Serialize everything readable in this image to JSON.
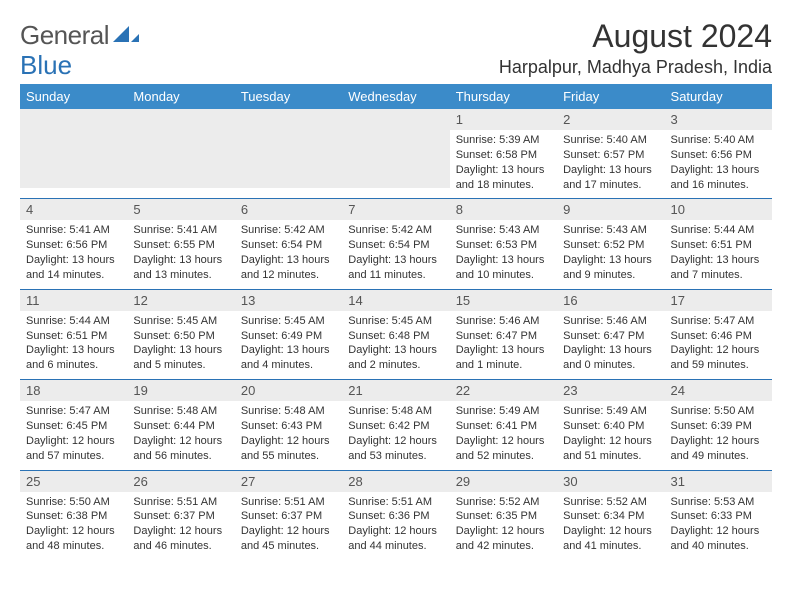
{
  "brand": {
    "line1": "General",
    "line2": "Blue"
  },
  "title": "August 2024",
  "location": "Harpalpur, Madhya Pradesh, India",
  "colors": {
    "header_bg": "#3b8bc9",
    "week_border": "#2a72b5",
    "daynum_bg": "#ececec",
    "text": "#333333",
    "brand_blue": "#2a72b5"
  },
  "day_headers": [
    "Sunday",
    "Monday",
    "Tuesday",
    "Wednesday",
    "Thursday",
    "Friday",
    "Saturday"
  ],
  "weeks": [
    [
      {
        "n": "",
        "sr": "",
        "ss": "",
        "dl": ""
      },
      {
        "n": "",
        "sr": "",
        "ss": "",
        "dl": ""
      },
      {
        "n": "",
        "sr": "",
        "ss": "",
        "dl": ""
      },
      {
        "n": "",
        "sr": "",
        "ss": "",
        "dl": ""
      },
      {
        "n": "1",
        "sr": "Sunrise: 5:39 AM",
        "ss": "Sunset: 6:58 PM",
        "dl": "Daylight: 13 hours and 18 minutes."
      },
      {
        "n": "2",
        "sr": "Sunrise: 5:40 AM",
        "ss": "Sunset: 6:57 PM",
        "dl": "Daylight: 13 hours and 17 minutes."
      },
      {
        "n": "3",
        "sr": "Sunrise: 5:40 AM",
        "ss": "Sunset: 6:56 PM",
        "dl": "Daylight: 13 hours and 16 minutes."
      }
    ],
    [
      {
        "n": "4",
        "sr": "Sunrise: 5:41 AM",
        "ss": "Sunset: 6:56 PM",
        "dl": "Daylight: 13 hours and 14 minutes."
      },
      {
        "n": "5",
        "sr": "Sunrise: 5:41 AM",
        "ss": "Sunset: 6:55 PM",
        "dl": "Daylight: 13 hours and 13 minutes."
      },
      {
        "n": "6",
        "sr": "Sunrise: 5:42 AM",
        "ss": "Sunset: 6:54 PM",
        "dl": "Daylight: 13 hours and 12 minutes."
      },
      {
        "n": "7",
        "sr": "Sunrise: 5:42 AM",
        "ss": "Sunset: 6:54 PM",
        "dl": "Daylight: 13 hours and 11 minutes."
      },
      {
        "n": "8",
        "sr": "Sunrise: 5:43 AM",
        "ss": "Sunset: 6:53 PM",
        "dl": "Daylight: 13 hours and 10 minutes."
      },
      {
        "n": "9",
        "sr": "Sunrise: 5:43 AM",
        "ss": "Sunset: 6:52 PM",
        "dl": "Daylight: 13 hours and 9 minutes."
      },
      {
        "n": "10",
        "sr": "Sunrise: 5:44 AM",
        "ss": "Sunset: 6:51 PM",
        "dl": "Daylight: 13 hours and 7 minutes."
      }
    ],
    [
      {
        "n": "11",
        "sr": "Sunrise: 5:44 AM",
        "ss": "Sunset: 6:51 PM",
        "dl": "Daylight: 13 hours and 6 minutes."
      },
      {
        "n": "12",
        "sr": "Sunrise: 5:45 AM",
        "ss": "Sunset: 6:50 PM",
        "dl": "Daylight: 13 hours and 5 minutes."
      },
      {
        "n": "13",
        "sr": "Sunrise: 5:45 AM",
        "ss": "Sunset: 6:49 PM",
        "dl": "Daylight: 13 hours and 4 minutes."
      },
      {
        "n": "14",
        "sr": "Sunrise: 5:45 AM",
        "ss": "Sunset: 6:48 PM",
        "dl": "Daylight: 13 hours and 2 minutes."
      },
      {
        "n": "15",
        "sr": "Sunrise: 5:46 AM",
        "ss": "Sunset: 6:47 PM",
        "dl": "Daylight: 13 hours and 1 minute."
      },
      {
        "n": "16",
        "sr": "Sunrise: 5:46 AM",
        "ss": "Sunset: 6:47 PM",
        "dl": "Daylight: 13 hours and 0 minutes."
      },
      {
        "n": "17",
        "sr": "Sunrise: 5:47 AM",
        "ss": "Sunset: 6:46 PM",
        "dl": "Daylight: 12 hours and 59 minutes."
      }
    ],
    [
      {
        "n": "18",
        "sr": "Sunrise: 5:47 AM",
        "ss": "Sunset: 6:45 PM",
        "dl": "Daylight: 12 hours and 57 minutes."
      },
      {
        "n": "19",
        "sr": "Sunrise: 5:48 AM",
        "ss": "Sunset: 6:44 PM",
        "dl": "Daylight: 12 hours and 56 minutes."
      },
      {
        "n": "20",
        "sr": "Sunrise: 5:48 AM",
        "ss": "Sunset: 6:43 PM",
        "dl": "Daylight: 12 hours and 55 minutes."
      },
      {
        "n": "21",
        "sr": "Sunrise: 5:48 AM",
        "ss": "Sunset: 6:42 PM",
        "dl": "Daylight: 12 hours and 53 minutes."
      },
      {
        "n": "22",
        "sr": "Sunrise: 5:49 AM",
        "ss": "Sunset: 6:41 PM",
        "dl": "Daylight: 12 hours and 52 minutes."
      },
      {
        "n": "23",
        "sr": "Sunrise: 5:49 AM",
        "ss": "Sunset: 6:40 PM",
        "dl": "Daylight: 12 hours and 51 minutes."
      },
      {
        "n": "24",
        "sr": "Sunrise: 5:50 AM",
        "ss": "Sunset: 6:39 PM",
        "dl": "Daylight: 12 hours and 49 minutes."
      }
    ],
    [
      {
        "n": "25",
        "sr": "Sunrise: 5:50 AM",
        "ss": "Sunset: 6:38 PM",
        "dl": "Daylight: 12 hours and 48 minutes."
      },
      {
        "n": "26",
        "sr": "Sunrise: 5:51 AM",
        "ss": "Sunset: 6:37 PM",
        "dl": "Daylight: 12 hours and 46 minutes."
      },
      {
        "n": "27",
        "sr": "Sunrise: 5:51 AM",
        "ss": "Sunset: 6:37 PM",
        "dl": "Daylight: 12 hours and 45 minutes."
      },
      {
        "n": "28",
        "sr": "Sunrise: 5:51 AM",
        "ss": "Sunset: 6:36 PM",
        "dl": "Daylight: 12 hours and 44 minutes."
      },
      {
        "n": "29",
        "sr": "Sunrise: 5:52 AM",
        "ss": "Sunset: 6:35 PM",
        "dl": "Daylight: 12 hours and 42 minutes."
      },
      {
        "n": "30",
        "sr": "Sunrise: 5:52 AM",
        "ss": "Sunset: 6:34 PM",
        "dl": "Daylight: 12 hours and 41 minutes."
      },
      {
        "n": "31",
        "sr": "Sunrise: 5:53 AM",
        "ss": "Sunset: 6:33 PM",
        "dl": "Daylight: 12 hours and 40 minutes."
      }
    ]
  ]
}
